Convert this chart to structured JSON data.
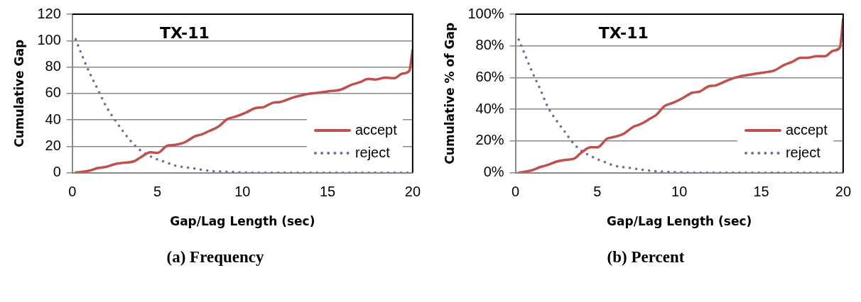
{
  "chart_data": [
    {
      "type": "line",
      "title": "TX-11",
      "xlabel": "Gap/Lag Length (sec)",
      "ylabel": "Cumulative Gap",
      "xlim": [
        0,
        20
      ],
      "xticks": [
        0,
        5,
        10,
        15,
        20
      ],
      "ylim": [
        0,
        120
      ],
      "yticks": [
        0,
        20,
        40,
        60,
        80,
        100,
        120
      ],
      "grid": "y",
      "legend": "bottom right",
      "marker": "none",
      "annotations": [
        "(a) Frequency"
      ],
      "series": [
        {
          "name": "accept",
          "color": "#c0504d",
          "line_style": "solid",
          "x": [
            0.2,
            1,
            1.5,
            2,
            2.5,
            3,
            3.6,
            4,
            4.6,
            5,
            5.6,
            6,
            6.6,
            7.2,
            7.6,
            8.2,
            8.6,
            9.1,
            9.6,
            10.2,
            10.8,
            11.2,
            11.8,
            12.2,
            13,
            13.6,
            14.4,
            15,
            15.8,
            16.4,
            16.9,
            17.4,
            17.8,
            18.4,
            18.9,
            19.4,
            19.8,
            20
          ],
          "values": [
            0,
            1.5,
            3.5,
            4.5,
            6.5,
            7.5,
            8.5,
            11.5,
            15.5,
            15,
            20.5,
            21,
            23,
            27.5,
            29,
            32.5,
            35,
            40.5,
            42.5,
            45.5,
            49,
            49.5,
            53,
            53.5,
            57,
            59,
            60.5,
            61.5,
            63,
            66.5,
            68.5,
            71,
            70.5,
            72,
            71.5,
            75,
            77,
            93
          ]
        },
        {
          "name": "reject",
          "color": "#8064a2",
          "line_style": "dotted",
          "x": [
            0.2,
            0.6,
            1,
            1.5,
            2,
            2.5,
            3,
            3.5,
            4,
            4.5,
            5,
            5.5,
            6,
            7,
            8,
            9,
            10,
            11,
            20
          ],
          "values": [
            101,
            88,
            76,
            63,
            50,
            40,
            31,
            23,
            17,
            13,
            10,
            8,
            5.5,
            3.5,
            1.5,
            0.8,
            0.3,
            0,
            0
          ]
        }
      ]
    },
    {
      "type": "line",
      "title": "TX-11",
      "xlabel": "Gap/Lag Length (sec)",
      "ylabel": "Cumulative % of Gap",
      "xlim": [
        0,
        20
      ],
      "xticks": [
        0,
        5,
        10,
        15,
        20
      ],
      "ylim": [
        0,
        100
      ],
      "yticks": [
        {
          "value": 0,
          "label": "0%"
        },
        {
          "value": 20,
          "label": "20%"
        },
        {
          "value": 40,
          "label": "40%"
        },
        {
          "value": 60,
          "label": "60%"
        },
        {
          "value": 80,
          "label": "80%"
        },
        {
          "value": 100,
          "label": "100%"
        }
      ],
      "grid": "y",
      "legend": "bottom right",
      "marker": "none",
      "annotations": [
        "(b) Percent"
      ],
      "series": [
        {
          "name": "accept",
          "color": "#c0504d",
          "line_style": "solid",
          "x": [
            0.2,
            1,
            1.5,
            2,
            2.5,
            3,
            3.6,
            4,
            4.6,
            5,
            5.6,
            6,
            6.6,
            7.2,
            7.6,
            8.2,
            8.6,
            9.1,
            9.6,
            10.2,
            10.8,
            11.2,
            11.8,
            12.2,
            13,
            13.6,
            14.4,
            15,
            15.8,
            16.4,
            16.9,
            17.4,
            17.8,
            18.4,
            18.9,
            19.4,
            19.8,
            20
          ],
          "values": [
            0,
            1.5,
            3.5,
            5,
            7,
            8,
            9,
            12.5,
            16,
            16,
            21.5,
            22.5,
            24.5,
            29,
            30.5,
            34,
            36.5,
            42,
            44,
            47,
            50.5,
            51,
            54.5,
            55,
            58.5,
            60.5,
            62,
            63,
            64.5,
            68,
            70,
            72.5,
            72.5,
            73.5,
            73.5,
            77,
            79,
            97
          ]
        },
        {
          "name": "reject",
          "color": "#8064a2",
          "line_style": "dotted",
          "x": [
            0.2,
            0.6,
            1,
            1.5,
            2,
            2.5,
            3,
            3.5,
            4,
            4.5,
            5,
            5.5,
            6,
            7,
            8,
            9,
            10,
            11,
            20
          ],
          "values": [
            84,
            74,
            64,
            53,
            41,
            33,
            26,
            19,
            14,
            11,
            8.5,
            6.5,
            4.5,
            3,
            1.5,
            0.7,
            0.3,
            0,
            0
          ]
        }
      ]
    }
  ]
}
